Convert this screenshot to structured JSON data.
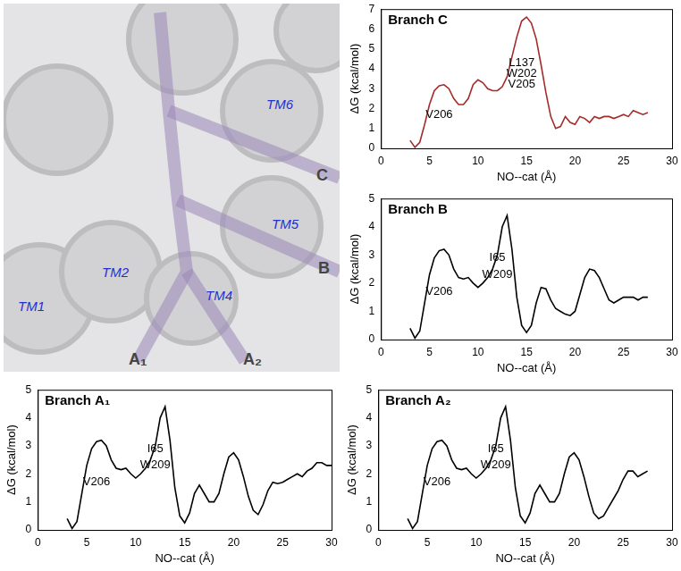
{
  "image_panel": {
    "labels": [
      "TM1",
      "TM2",
      "TM4",
      "TM5",
      "TM6",
      "A₁",
      "A₂",
      "B",
      "C"
    ]
  },
  "chart_data": [
    {
      "type": "line",
      "title": "Branch C",
      "x_label": "NO--cat (Å)",
      "y_label": "ΔG (kcal/mol)",
      "color": "#a52a2a",
      "grid": false,
      "xlim": [
        0,
        30
      ],
      "xticks": [
        0,
        5,
        10,
        15,
        20,
        25,
        30
      ],
      "ylim": [
        0,
        7
      ],
      "yticks": [
        0,
        1,
        2,
        3,
        4,
        5,
        6,
        7
      ],
      "x": [
        3.0,
        3.5,
        4.0,
        4.5,
        5.0,
        5.5,
        6.0,
        6.5,
        7.0,
        7.5,
        8.0,
        8.5,
        9.0,
        9.5,
        10.0,
        10.5,
        11.0,
        11.5,
        12.0,
        12.5,
        13.0,
        13.5,
        14.0,
        14.5,
        15.0,
        15.5,
        16.0,
        16.5,
        17.0,
        17.5,
        18.0,
        18.5,
        19.0,
        19.5,
        20.0,
        20.5,
        21.0,
        21.5,
        22.0,
        22.5,
        23.0,
        23.5,
        24.0,
        24.5,
        25.0,
        25.5,
        26.0,
        26.5,
        27.0,
        27.5
      ],
      "values": [
        0.4,
        0.05,
        0.3,
        1.2,
        2.2,
        2.9,
        3.15,
        3.2,
        3.0,
        2.5,
        2.2,
        2.2,
        2.5,
        3.2,
        3.45,
        3.3,
        3.0,
        2.9,
        2.9,
        3.1,
        3.6,
        4.6,
        5.6,
        6.4,
        6.6,
        6.3,
        5.5,
        4.2,
        2.8,
        1.6,
        1.0,
        1.1,
        1.6,
        1.3,
        1.2,
        1.6,
        1.5,
        1.3,
        1.6,
        1.5,
        1.6,
        1.6,
        1.5,
        1.6,
        1.7,
        1.6,
        1.9,
        1.8,
        1.7,
        1.8
      ],
      "annotations": [
        {
          "text": "V206",
          "x": 6,
          "y": 1.7
        },
        {
          "text": "L137",
          "x": 14.5,
          "y": 4.3
        },
        {
          "text": "W202",
          "x": 14.5,
          "y": 3.75
        },
        {
          "text": "V205",
          "x": 14.5,
          "y": 3.2
        }
      ]
    },
    {
      "type": "line",
      "title": "Branch B",
      "x_label": "NO--cat (Å)",
      "y_label": "ΔG (kcal/mol)",
      "color": "#000000",
      "grid": false,
      "xlim": [
        0,
        30
      ],
      "xticks": [
        0,
        5,
        10,
        15,
        20,
        25,
        30
      ],
      "ylim": [
        0,
        5
      ],
      "yticks": [
        0,
        1,
        2,
        3,
        4,
        5
      ],
      "x": [
        3.0,
        3.5,
        4.0,
        4.5,
        5.0,
        5.5,
        6.0,
        6.5,
        7.0,
        7.5,
        8.0,
        8.5,
        9.0,
        9.5,
        10.0,
        10.5,
        11.0,
        11.5,
        12.0,
        12.5,
        13.0,
        13.5,
        14.0,
        14.5,
        15.0,
        15.5,
        16.0,
        16.5,
        17.0,
        17.5,
        18.0,
        18.5,
        19.0,
        19.5,
        20.0,
        20.5,
        21.0,
        21.5,
        22.0,
        22.5,
        23.0,
        23.5,
        24.0,
        24.5,
        25.0,
        25.5,
        26.0,
        26.5,
        27.0,
        27.5
      ],
      "values": [
        0.4,
        0.05,
        0.3,
        1.3,
        2.3,
        2.9,
        3.15,
        3.2,
        3.0,
        2.5,
        2.2,
        2.15,
        2.2,
        2.0,
        1.85,
        2.0,
        2.2,
        2.5,
        3.0,
        4.0,
        4.4,
        3.2,
        1.5,
        0.5,
        0.25,
        0.5,
        1.3,
        1.85,
        1.8,
        1.4,
        1.1,
        1.0,
        0.9,
        0.85,
        1.0,
        1.6,
        2.2,
        2.5,
        2.45,
        2.2,
        1.8,
        1.4,
        1.3,
        1.4,
        1.5,
        1.5,
        1.5,
        1.4,
        1.5,
        1.5
      ],
      "annotations": [
        {
          "text": "V206",
          "x": 6,
          "y": 1.7
        },
        {
          "text": "I65",
          "x": 12,
          "y": 2.9
        },
        {
          "text": "W209",
          "x": 12,
          "y": 2.3
        }
      ]
    },
    {
      "type": "line",
      "title": "Branch A₁",
      "x_label": "NO--cat (Å)",
      "y_label": "ΔG (kcal/mol)",
      "color": "#000000",
      "grid": false,
      "xlim": [
        0,
        30
      ],
      "xticks": [
        0,
        5,
        10,
        15,
        20,
        25,
        30
      ],
      "ylim": [
        0,
        5
      ],
      "yticks": [
        0,
        1,
        2,
        3,
        4,
        5
      ],
      "x": [
        3.0,
        3.5,
        4.0,
        4.5,
        5.0,
        5.5,
        6.0,
        6.5,
        7.0,
        7.5,
        8.0,
        8.5,
        9.0,
        9.5,
        10.0,
        10.5,
        11.0,
        11.5,
        12.0,
        12.5,
        13.0,
        13.5,
        14.0,
        14.5,
        15.0,
        15.5,
        16.0,
        16.5,
        17.0,
        17.5,
        18.0,
        18.5,
        19.0,
        19.5,
        20.0,
        20.5,
        21.0,
        21.5,
        22.0,
        22.5,
        23.0,
        23.5,
        24.0,
        24.5,
        25.0,
        25.5,
        26.0,
        26.5,
        27.0,
        27.5,
        28.0,
        28.5,
        29.0,
        29.5,
        30.0
      ],
      "values": [
        0.4,
        0.05,
        0.3,
        1.3,
        2.3,
        2.9,
        3.15,
        3.2,
        3.0,
        2.5,
        2.2,
        2.15,
        2.2,
        2.0,
        1.85,
        2.0,
        2.2,
        2.5,
        3.0,
        4.0,
        4.4,
        3.2,
        1.5,
        0.5,
        0.25,
        0.6,
        1.3,
        1.6,
        1.3,
        1.0,
        1.0,
        1.3,
        2.0,
        2.6,
        2.75,
        2.5,
        1.9,
        1.2,
        0.7,
        0.55,
        0.9,
        1.4,
        1.7,
        1.65,
        1.7,
        1.8,
        1.9,
        2.0,
        1.9,
        2.1,
        2.2,
        2.4,
        2.4,
        2.3,
        2.3
      ],
      "annotations": [
        {
          "text": "V206",
          "x": 6,
          "y": 1.7
        },
        {
          "text": "I65",
          "x": 12,
          "y": 2.9
        },
        {
          "text": "W209",
          "x": 12,
          "y": 2.3
        }
      ]
    },
    {
      "type": "line",
      "title": "Branch A₂",
      "x_label": "NO--cat (Å)",
      "y_label": "ΔG (kcal/mol)",
      "color": "#000000",
      "grid": false,
      "xlim": [
        0,
        30
      ],
      "xticks": [
        0,
        5,
        10,
        15,
        20,
        25,
        30
      ],
      "ylim": [
        0,
        5
      ],
      "yticks": [
        0,
        1,
        2,
        3,
        4,
        5
      ],
      "x": [
        3.0,
        3.5,
        4.0,
        4.5,
        5.0,
        5.5,
        6.0,
        6.5,
        7.0,
        7.5,
        8.0,
        8.5,
        9.0,
        9.5,
        10.0,
        10.5,
        11.0,
        11.5,
        12.0,
        12.5,
        13.0,
        13.5,
        14.0,
        14.5,
        15.0,
        15.5,
        16.0,
        16.5,
        17.0,
        17.5,
        18.0,
        18.5,
        19.0,
        19.5,
        20.0,
        20.5,
        21.0,
        21.5,
        22.0,
        22.5,
        23.0,
        23.5,
        24.0,
        24.5,
        25.0,
        25.5,
        26.0,
        26.5,
        27.0,
        27.5
      ],
      "values": [
        0.4,
        0.05,
        0.3,
        1.3,
        2.3,
        2.9,
        3.15,
        3.2,
        3.0,
        2.5,
        2.2,
        2.15,
        2.2,
        2.0,
        1.85,
        2.0,
        2.2,
        2.5,
        3.0,
        4.0,
        4.4,
        3.2,
        1.5,
        0.5,
        0.25,
        0.6,
        1.3,
        1.6,
        1.3,
        1.0,
        1.0,
        1.3,
        2.0,
        2.6,
        2.75,
        2.5,
        1.9,
        1.2,
        0.6,
        0.4,
        0.5,
        0.8,
        1.1,
        1.4,
        1.8,
        2.1,
        2.1,
        1.9,
        2.0,
        2.1
      ],
      "annotations": [
        {
          "text": "V206",
          "x": 6,
          "y": 1.7
        },
        {
          "text": "I65",
          "x": 12,
          "y": 2.9
        },
        {
          "text": "W209",
          "x": 12,
          "y": 2.3
        }
      ]
    }
  ]
}
